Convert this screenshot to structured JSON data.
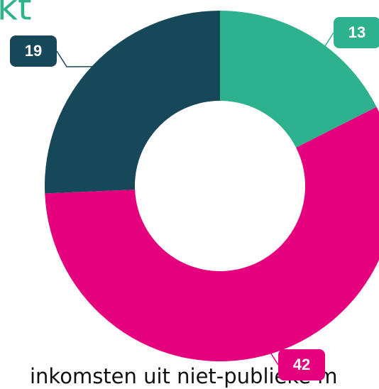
{
  "chart_data": {
    "type": "donut",
    "title": "kt",
    "subtitle": "inkomsten uit niet-publieke m",
    "categories": [
      null,
      null,
      null
    ],
    "values": [
      13,
      42,
      19
    ],
    "colors": [
      "#2db28d",
      "#e5007d",
      "#17485a"
    ]
  }
}
